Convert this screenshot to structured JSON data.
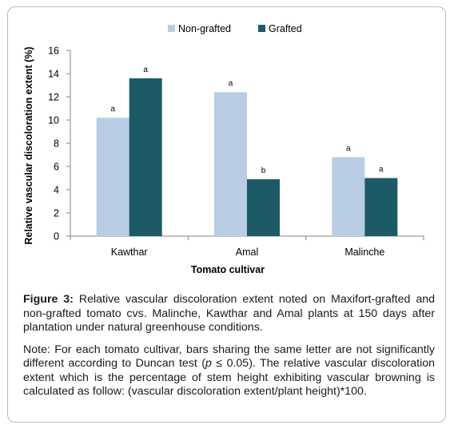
{
  "chart_data": {
    "type": "bar",
    "xlabel": "Tomato cultivar",
    "ylabel": "Relative vascular discoloration extent (%)",
    "ylim": [
      0,
      16
    ],
    "yticks": [
      0,
      2,
      4,
      6,
      8,
      10,
      12,
      14,
      16
    ],
    "categories": [
      "Kawthar",
      "Amal",
      "Malinche"
    ],
    "grid": false,
    "legend_position": "top",
    "series": [
      {
        "name": "Non-grafted",
        "color": "#b9cde5",
        "values": [
          10.2,
          12.4,
          6.8
        ],
        "labels": [
          "a",
          "a",
          "a"
        ]
      },
      {
        "name": "Grafted",
        "color": "#1c5a66",
        "values": [
          13.6,
          4.9,
          5.0
        ],
        "labels": [
          "a",
          "b",
          "a"
        ]
      }
    ]
  },
  "caption": {
    "figure_label": "Figure 3:",
    "figure_text": " Relative vascular discoloration extent noted on Maxifort-grafted and non-grafted tomato cvs. Malinche, Kawthar and Amal plants at 150 days after plantation under natural greenhouse conditions.",
    "note_a": "Note: For each tomato cultivar, bars sharing the same letter are not significantly different according to Duncan test (",
    "note_p": "p",
    "note_b": " ≤ 0.05). The relative vascular discoloration extent which is the percentage of stem height exhibiting vascular browning is calculated as follow: (vascular discoloration extent/plant height)*100."
  }
}
